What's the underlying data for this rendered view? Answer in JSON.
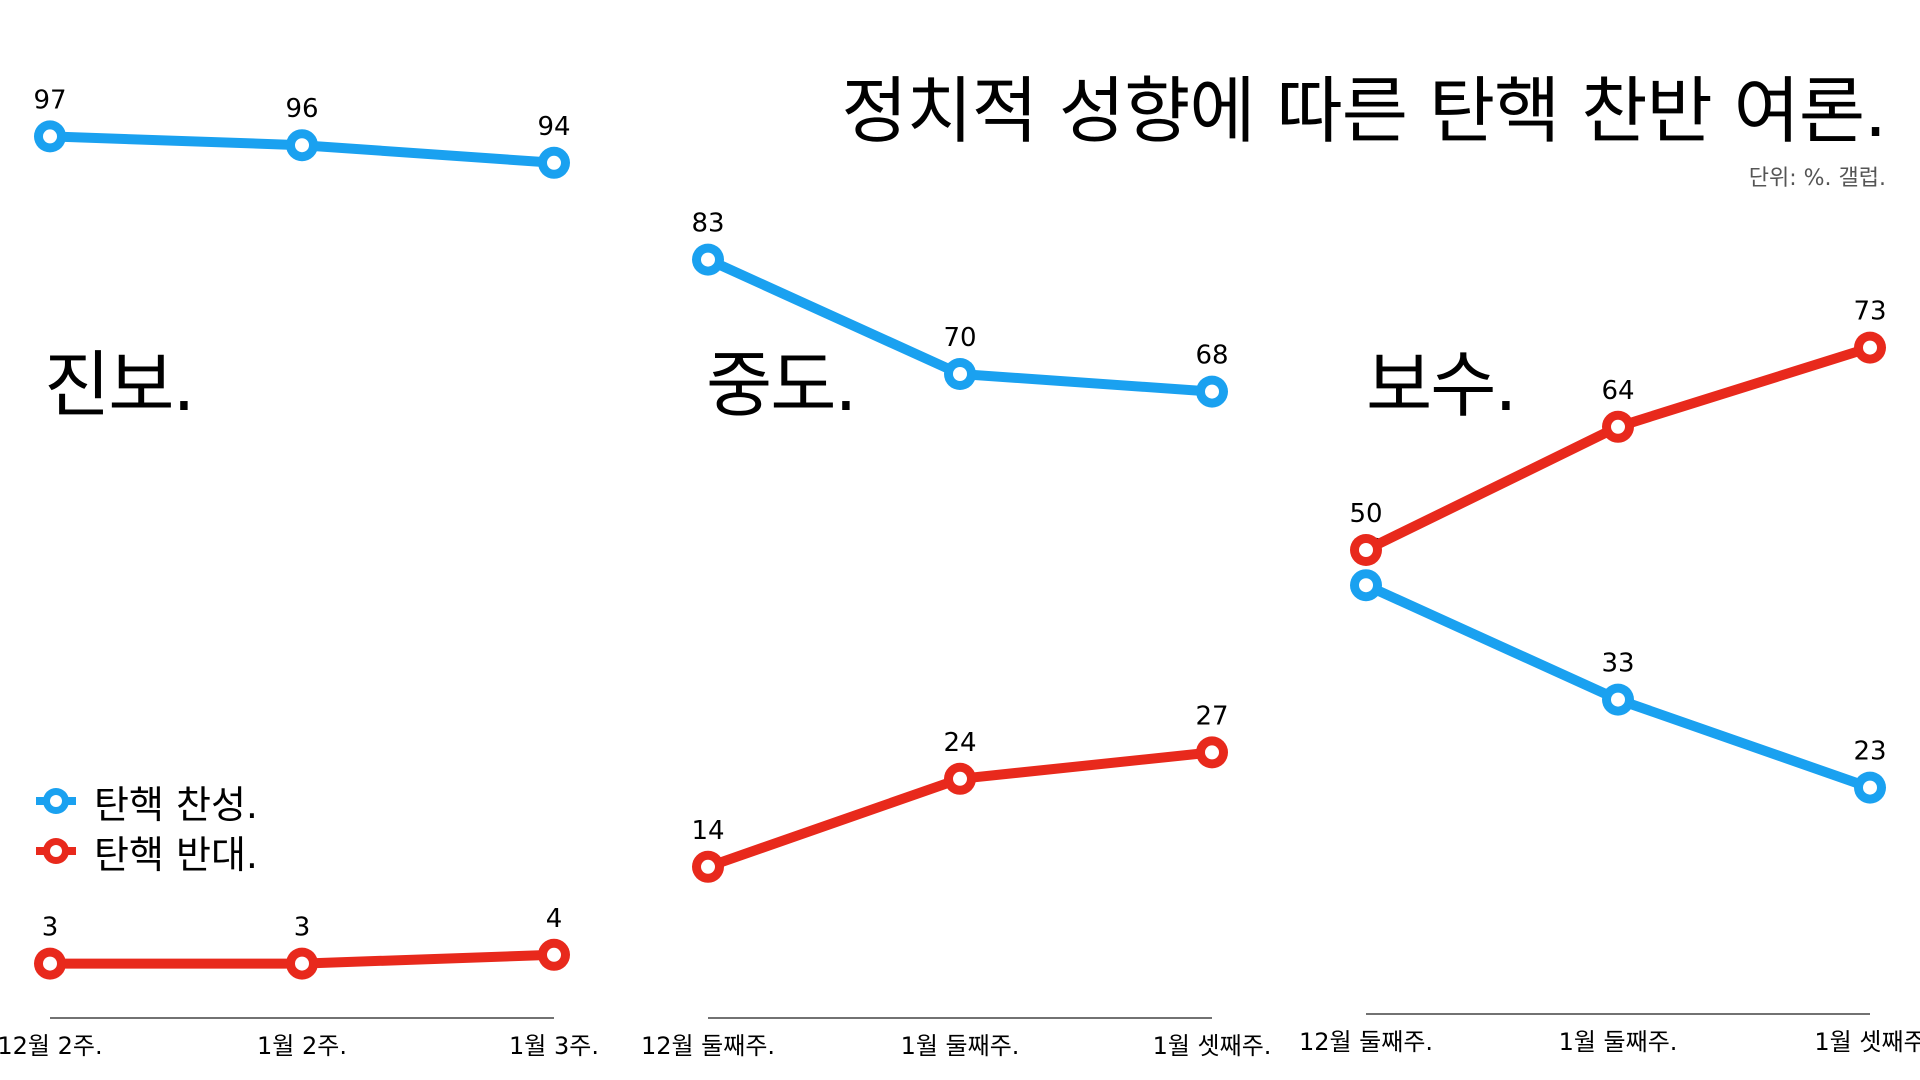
{
  "title": "정치적 성향에 따른 탄핵 찬반 여론.",
  "subtitle": "단위: %. 갤럽.",
  "colors": {
    "support": "#1aa1f0",
    "oppose": "#e8291c",
    "axis": "#444444"
  },
  "legend": [
    {
      "label": "탄핵 찬성.",
      "color": "#1aa1f0"
    },
    {
      "label": "탄핵 반대.",
      "color": "#e8291c"
    }
  ],
  "chart_data": [
    {
      "type": "line",
      "title": "진보.",
      "categories": [
        "12월 2주.",
        "1월 2주.",
        "1월 3주."
      ],
      "ylim": [
        0,
        100
      ],
      "series": [
        {
          "name": "탄핵 찬성.",
          "values": [
            97,
            96,
            94
          ]
        },
        {
          "name": "탄핵 반대.",
          "values": [
            3,
            3,
            4
          ]
        }
      ]
    },
    {
      "type": "line",
      "title": "중도.",
      "categories": [
        "12월 둘째주.",
        "1월 둘째주.",
        "1월 셋째주."
      ],
      "ylim": [
        0,
        100
      ],
      "series": [
        {
          "name": "탄핵 찬성.",
          "values": [
            83,
            70,
            68
          ]
        },
        {
          "name": "탄핵 반대.",
          "values": [
            14,
            24,
            27
          ]
        }
      ]
    },
    {
      "type": "line",
      "title": "보수.",
      "categories": [
        "12월 둘째주.",
        "1월 둘째주.",
        "1월 셋째주"
      ],
      "ylim": [
        0,
        100
      ],
      "series": [
        {
          "name": "탄핵 찬성.",
          "values": [
            46,
            33,
            23
          ]
        },
        {
          "name": "탄핵 반대.",
          "values": [
            50,
            64,
            73
          ]
        }
      ]
    }
  ]
}
